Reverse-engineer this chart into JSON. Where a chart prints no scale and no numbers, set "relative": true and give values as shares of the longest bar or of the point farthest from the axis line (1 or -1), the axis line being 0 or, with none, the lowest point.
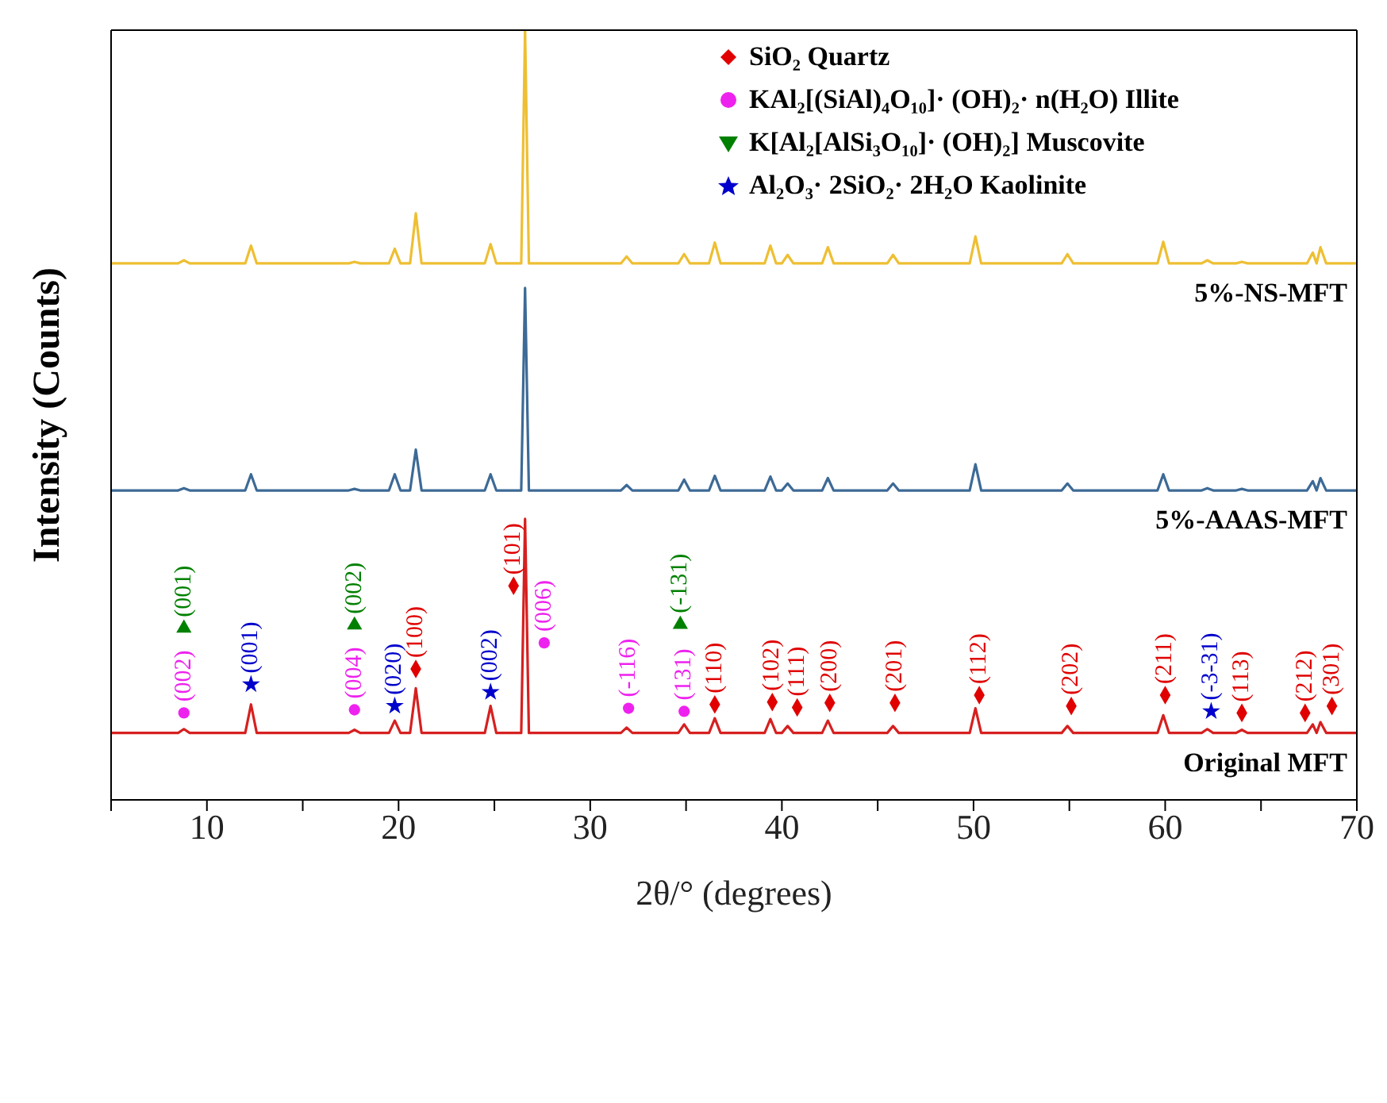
{
  "chart_data": {
    "type": "line",
    "relative": true,
    "xlabel": "2θ/° (degrees)",
    "ylabel": "Intensity (Counts)",
    "xlim": [
      5,
      70
    ],
    "xticks": [
      {
        "value": 5,
        "label": null
      },
      10,
      {
        "value": 15,
        "label": null
      },
      20,
      {
        "value": 25,
        "label": null
      },
      30,
      {
        "value": 35,
        "label": null
      },
      40,
      {
        "value": 45,
        "label": null
      },
      50,
      {
        "value": 55,
        "label": null
      },
      60,
      {
        "value": 65,
        "label": null
      },
      70
    ],
    "legend": "top right",
    "x": [
      5,
      8.5,
      8.8,
      9.1,
      12.0,
      12.3,
      12.6,
      17.4,
      17.7,
      18.0,
      19.5,
      19.8,
      20.1,
      20.6,
      20.9,
      21.2,
      24.5,
      24.8,
      25.1,
      26.4,
      26.6,
      26.8,
      31.6,
      31.9,
      32.2,
      34.6,
      34.9,
      35.2,
      36.2,
      36.5,
      36.8,
      39.1,
      39.4,
      39.7,
      40.0,
      40.3,
      40.6,
      42.1,
      42.4,
      42.7,
      45.5,
      45.8,
      46.1,
      49.8,
      50.1,
      50.4,
      54.6,
      54.9,
      55.2,
      59.6,
      59.9,
      60.2,
      61.9,
      62.2,
      62.5,
      63.7,
      64.0,
      64.3,
      67.4,
      67.7,
      67.9,
      68.1,
      68.4,
      70
    ],
    "series": [
      {
        "name": "5%-NS-MFT",
        "color": "#eebf33",
        "values": [
          0.697,
          0.697,
          0.701,
          0.697,
          0.697,
          0.72,
          0.697,
          0.697,
          0.699,
          0.697,
          0.697,
          0.716,
          0.697,
          0.697,
          0.762,
          0.697,
          0.697,
          0.722,
          0.697,
          0.697,
          1,
          0.697,
          0.697,
          0.706,
          0.697,
          0.697,
          0.709,
          0.697,
          0.697,
          0.724,
          0.697,
          0.697,
          0.72,
          0.697,
          0.697,
          0.708,
          0.697,
          0.697,
          0.718,
          0.697,
          0.697,
          0.708,
          0.697,
          0.697,
          0.732,
          0.697,
          0.697,
          0.709,
          0.697,
          0.697,
          0.725,
          0.697,
          0.697,
          0.701,
          0.697,
          0.697,
          0.699,
          0.697,
          0.697,
          0.711,
          0.697,
          0.718,
          0.697,
          0.697
        ]
      },
      {
        "name": "5%-AAAS-MFT",
        "color": "#3d6a96",
        "values": [
          0.402,
          0.402,
          0.405,
          0.402,
          0.402,
          0.423,
          0.402,
          0.402,
          0.404,
          0.402,
          0.402,
          0.423,
          0.402,
          0.402,
          0.455,
          0.402,
          0.402,
          0.423,
          0.402,
          0.402,
          0.665,
          0.402,
          0.402,
          0.409,
          0.402,
          0.402,
          0.416,
          0.402,
          0.402,
          0.421,
          0.402,
          0.402,
          0.42,
          0.402,
          0.402,
          0.411,
          0.402,
          0.402,
          0.418,
          0.402,
          0.402,
          0.411,
          0.402,
          0.402,
          0.436,
          0.402,
          0.402,
          0.411,
          0.402,
          0.402,
          0.423,
          0.402,
          0.402,
          0.405,
          0.402,
          0.402,
          0.404,
          0.402,
          0.402,
          0.414,
          0.402,
          0.418,
          0.402,
          0.402
        ]
      },
      {
        "name": "Original MFT",
        "color": "#d62020",
        "values": [
          0.087,
          0.087,
          0.092,
          0.087,
          0.087,
          0.124,
          0.087,
          0.087,
          0.091,
          0.087,
          0.087,
          0.103,
          0.087,
          0.087,
          0.145,
          0.087,
          0.087,
          0.122,
          0.087,
          0.087,
          0.365,
          0.087,
          0.087,
          0.094,
          0.087,
          0.087,
          0.098,
          0.087,
          0.087,
          0.106,
          0.087,
          0.087,
          0.105,
          0.087,
          0.087,
          0.096,
          0.087,
          0.087,
          0.103,
          0.087,
          0.087,
          0.096,
          0.087,
          0.087,
          0.119,
          0.087,
          0.087,
          0.096,
          0.087,
          0.087,
          0.11,
          0.087,
          0.087,
          0.092,
          0.087,
          0.087,
          0.091,
          0.087,
          0.087,
          0.098,
          0.087,
          0.101,
          0.087,
          0.087
        ]
      },
      {
        "name": "SiO₂ Quartz",
        "type": "scatter",
        "marker": "diamond",
        "color": "#e00000",
        "x": [
          20.9,
          26.0,
          36.5,
          39.5,
          40.8,
          42.5,
          45.9,
          50.3,
          55.1,
          60.0,
          64.0,
          67.3,
          68.7
        ],
        "values": [
          0.17,
          0.278,
          0.124,
          0.127,
          0.12,
          0.126,
          0.126,
          0.136,
          0.122,
          0.136,
          0.113,
          0.113,
          0.122
        ]
      },
      {
        "name": "KAl₂[(SiAl)₄O₁₀]·  (OH)₂·  n(H₂O) Illite",
        "type": "scatter",
        "marker": "circle",
        "color": "#ee22ee",
        "x": [
          8.8,
          17.7,
          27.6,
          32.0,
          34.9
        ],
        "values": [
          0.113,
          0.117,
          0.204,
          0.119,
          0.115
        ]
      },
      {
        "name": "K[Al₂[AlSi₃O₁₀]·  (OH)₂] Muscovite",
        "type": "scatter",
        "marker": "triangle",
        "color": "#008000",
        "x": [
          8.8,
          17.7,
          34.7
        ],
        "values": [
          0.223,
          0.227,
          0.228
        ]
      },
      {
        "name": "Al₂O₃·  2SiO₂·  2H₂O Kaolinite",
        "type": "scatter",
        "marker": "star",
        "color": "#0000cc",
        "x": [
          12.3,
          19.8,
          24.8,
          62.4
        ],
        "values": [
          0.15,
          0.122,
          0.14,
          0.115
        ]
      }
    ],
    "annotations": [
      {
        "text": "(002)",
        "x": 8.8,
        "y": 0.113
      },
      {
        "text": "(001)",
        "x": 8.8,
        "y": 0.223
      },
      {
        "text": "(001)",
        "x": 12.3,
        "y": 0.15
      },
      {
        "text": "(004)",
        "x": 17.7,
        "y": 0.117
      },
      {
        "text": "(002)",
        "x": 17.7,
        "y": 0.227
      },
      {
        "text": "(020)",
        "x": 19.8,
        "y": 0.122
      },
      {
        "text": "(100)",
        "x": 20.9,
        "y": 0.17
      },
      {
        "text": "(002)",
        "x": 24.8,
        "y": 0.14
      },
      {
        "text": "(101)",
        "x": 26.0,
        "y": 0.278
      },
      {
        "text": "(006)",
        "x": 27.6,
        "y": 0.204
      },
      {
        "text": "(-116)",
        "x": 32.0,
        "y": 0.119
      },
      {
        "text": "(-131)",
        "x": 34.7,
        "y": 0.228
      },
      {
        "text": "(131)",
        "x": 34.9,
        "y": 0.115
      },
      {
        "text": "(110)",
        "x": 36.5,
        "y": 0.124
      },
      {
        "text": "(102)",
        "x": 39.5,
        "y": 0.127
      },
      {
        "text": "(111)",
        "x": 40.8,
        "y": 0.12
      },
      {
        "text": "(200)",
        "x": 42.5,
        "y": 0.126
      },
      {
        "text": "(201)",
        "x": 45.9,
        "y": 0.126
      },
      {
        "text": "(112)",
        "x": 50.3,
        "y": 0.136
      },
      {
        "text": "(202)",
        "x": 55.1,
        "y": 0.122
      },
      {
        "text": "(211)",
        "x": 60.0,
        "y": 0.136
      },
      {
        "text": "(-3-31)",
        "x": 62.4,
        "y": 0.115
      },
      {
        "text": "(113)",
        "x": 64.0,
        "y": 0.113
      },
      {
        "text": "(212)",
        "x": 67.3,
        "y": 0.113
      },
      {
        "text": "(301)",
        "x": 68.7,
        "y": 0.122
      }
    ]
  }
}
